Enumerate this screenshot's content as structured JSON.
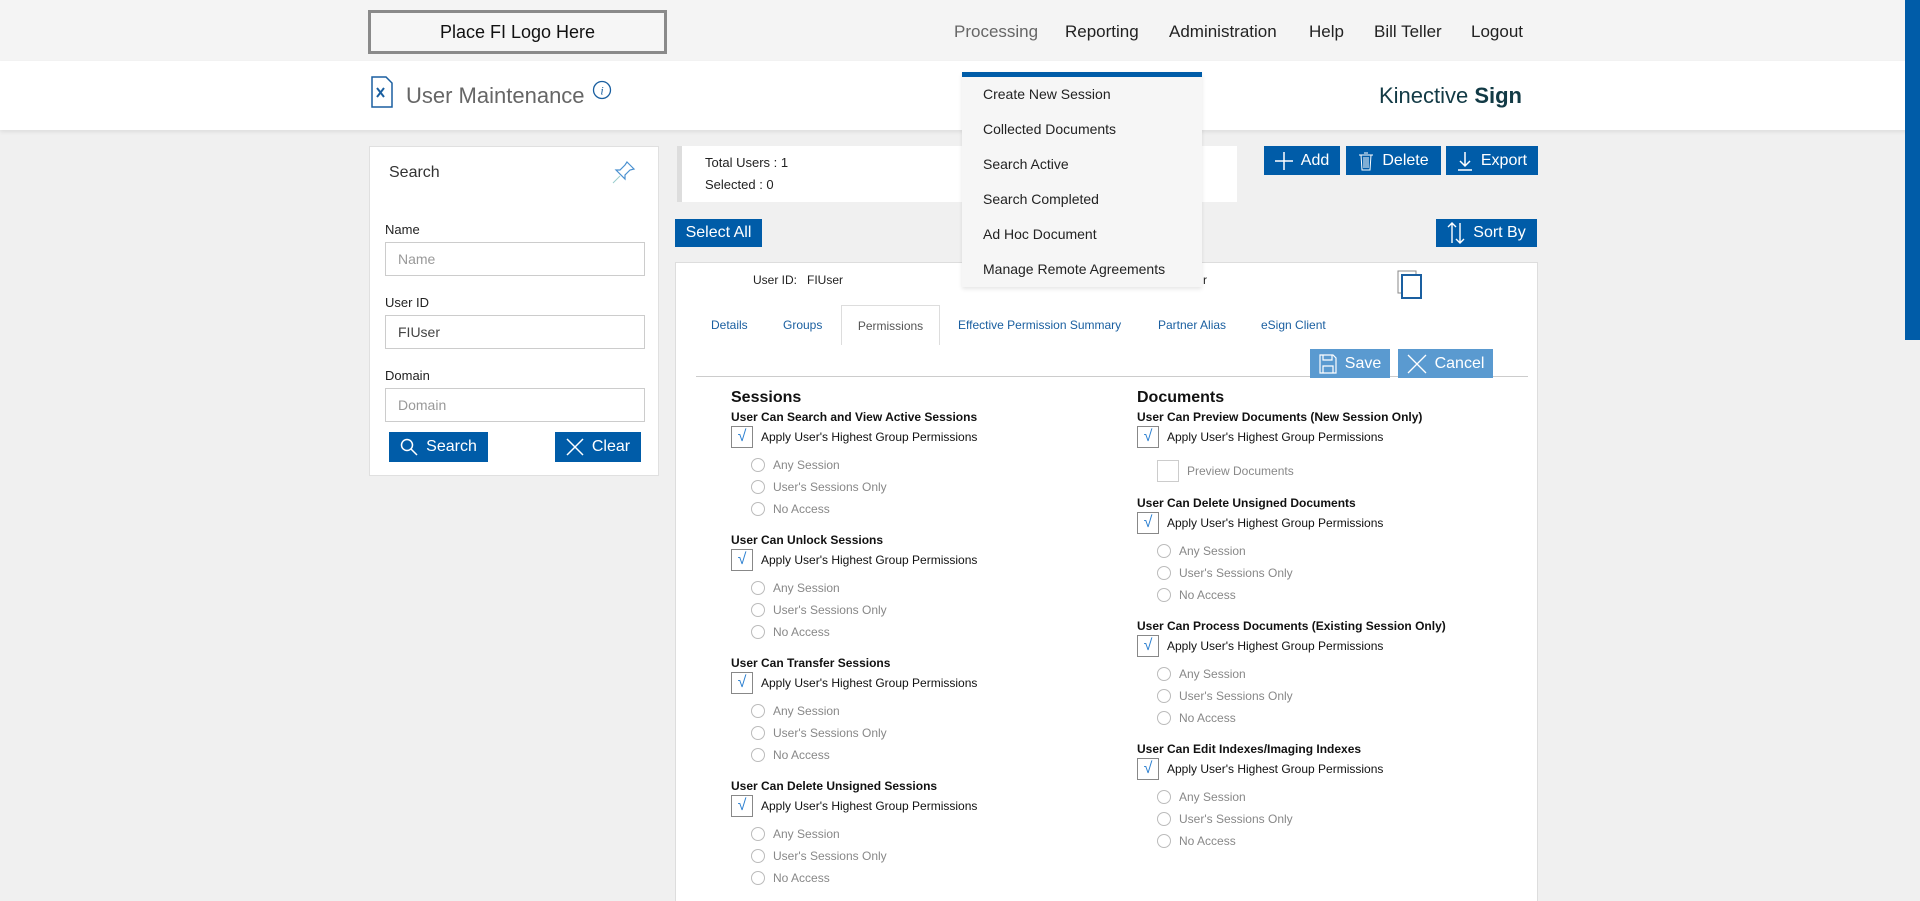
{
  "topnav": {
    "logo": "Place FI Logo Here",
    "items": [
      "Processing",
      "Reporting",
      "Administration",
      "Help",
      "Bill Teller",
      "Logout"
    ]
  },
  "header": {
    "title": "User Maintenance",
    "brand_light": "Kinective ",
    "brand_bold": "Sign"
  },
  "dropdown": {
    "items": [
      "Create New Session",
      "Collected Documents",
      "Search Active",
      "Search Completed",
      "Ad Hoc Document",
      "Manage Remote Agreements"
    ]
  },
  "search": {
    "title": "Search",
    "name_label": "Name",
    "name_placeholder": "Name",
    "userid_label": "User ID",
    "userid_value": "FIUser",
    "domain_label": "Domain",
    "domain_placeholder": "Domain",
    "search_btn": "Search",
    "clear_btn": "Clear"
  },
  "summary": {
    "total": "Total Users : 1",
    "selected": "Selected : 0"
  },
  "toolbar": {
    "add": "Add",
    "delete": "Delete",
    "export": "Export",
    "select_all": "Select All",
    "sort_by": "Sort By"
  },
  "card": {
    "userid_label": "User ID:",
    "userid_value": "FIUser",
    "hidden_fragment": "r",
    "tabs": [
      "Details",
      "Groups",
      "Permissions",
      "Effective Permission Summary",
      "Partner Alias",
      "eSign Client"
    ],
    "active_tab": "Permissions",
    "save": "Save",
    "cancel": "Cancel"
  },
  "colors": {
    "primary": "#005ca8",
    "light_button": "#5a9ad0",
    "checkmark": "#2a7fd0"
  },
  "permissions": {
    "sessions": {
      "heading": "Sessions",
      "groups": [
        {
          "title": "User Can Search and View Active Sessions",
          "apply": "Apply User's Highest Group Permissions",
          "checked": true,
          "options": [
            "Any Session",
            "User's Sessions Only",
            "No Access"
          ]
        },
        {
          "title": "User Can Unlock Sessions",
          "apply": "Apply User's Highest Group Permissions",
          "checked": true,
          "options": [
            "Any Session",
            "User's Sessions Only",
            "No Access"
          ]
        },
        {
          "title": "User Can Transfer Sessions",
          "apply": "Apply User's Highest Group Permissions",
          "checked": true,
          "options": [
            "Any Session",
            "User's Sessions Only",
            "No Access"
          ]
        },
        {
          "title": "User Can Delete Unsigned Sessions",
          "apply": "Apply User's Highest Group Permissions",
          "checked": true,
          "options": [
            "Any Session",
            "User's Sessions Only",
            "No Access"
          ]
        }
      ]
    },
    "documents": {
      "heading": "Documents",
      "groups": [
        {
          "title": "User Can Preview Documents (New Session Only)",
          "apply": "Apply User's Highest Group Permissions",
          "checked": true,
          "checkbox_option": "Preview Documents"
        },
        {
          "title": "User Can Delete Unsigned Documents",
          "apply": "Apply User's Highest Group Permissions",
          "checked": true,
          "options": [
            "Any Session",
            "User's Sessions Only",
            "No Access"
          ]
        },
        {
          "title": "User Can Process Documents (Existing Session Only)",
          "apply": "Apply User's Highest Group Permissions",
          "checked": true,
          "options": [
            "Any Session",
            "User's Sessions Only",
            "No Access"
          ]
        },
        {
          "title": "User Can Edit Indexes/Imaging Indexes",
          "apply": "Apply User's Highest Group Permissions",
          "checked": true,
          "options": [
            "Any Session",
            "User's Sessions Only",
            "No Access"
          ]
        }
      ]
    }
  }
}
